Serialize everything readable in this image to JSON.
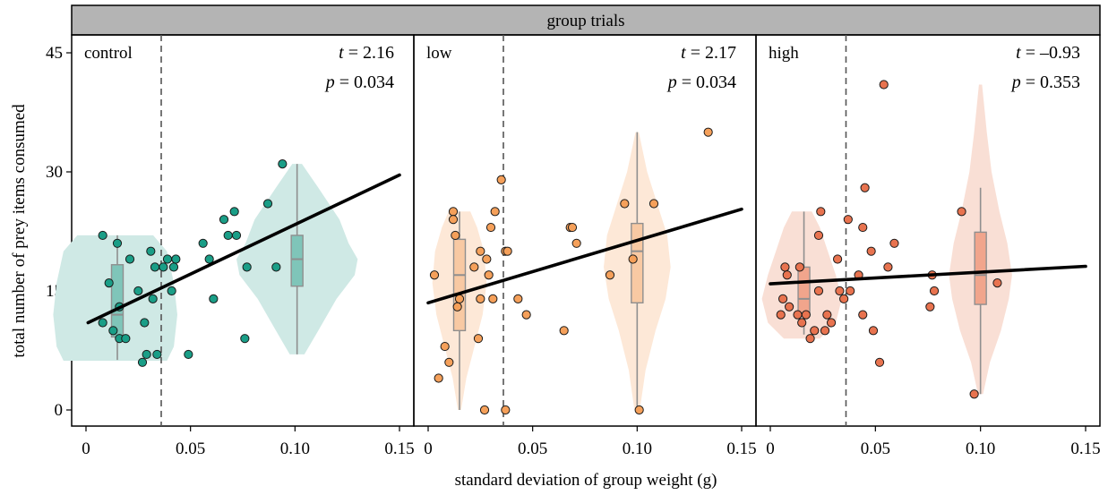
{
  "figure": {
    "strip_title": "group trials",
    "xlabel": "standard deviation of group weight (g)",
    "ylabel": "total number of prey items consumed"
  },
  "chart_data": {
    "type": "scatter",
    "xlim": [
      0,
      0.15
    ],
    "ylim": [
      0,
      45
    ],
    "x_ticks": [
      0,
      0.05,
      0.1,
      0.15
    ],
    "x_tick_labels": [
      "0",
      "0.05",
      "0.10",
      "0.15"
    ],
    "y_ticks": [
      0,
      15,
      30,
      45
    ],
    "y_tick_labels": [
      "0",
      "15",
      "30",
      "45"
    ],
    "threshold_x": 0.036,
    "grid": false,
    "panels": [
      {
        "name": "control",
        "t_label": "t",
        "t_value": "= 2.16",
        "p_label": "p",
        "p_value": "= 0.034",
        "point_color": "#1a9e87",
        "fill_color": "#cfe9e5",
        "box_color": "#7fc5b9",
        "regression": {
          "x": [
            0.001,
            0.15
          ],
          "y": [
            11.0,
            29.6
          ]
        },
        "violins": [
          {
            "center": 0.014,
            "max_halfwidth": 0.033,
            "profile": [
              [
                6.2,
                0.75
              ],
              [
                8,
                0.85
              ],
              [
                12,
                0.9
              ],
              [
                16,
                0.85
              ],
              [
                20,
                0.75
              ],
              [
                22,
                0.55
              ]
            ]
          },
          {
            "center": 0.101,
            "max_halfwidth": 0.029,
            "profile": [
              [
                7,
                0.12
              ],
              [
                10,
                0.35
              ],
              [
                14,
                0.65
              ],
              [
                17,
                0.95
              ],
              [
                19,
                1.0
              ],
              [
                21,
                0.85
              ],
              [
                24,
                0.7
              ],
              [
                28,
                0.35
              ],
              [
                31,
                0.08
              ]
            ]
          }
        ],
        "boxes": [
          {
            "center": 0.015,
            "q1": 9.2,
            "median": 12.0,
            "q3": 18.3,
            "min": 6.3,
            "max": 22
          },
          {
            "center": 0.101,
            "q1": 15.6,
            "median": 19.0,
            "q3": 22.0,
            "min": 7.0,
            "max": 31
          }
        ],
        "points": [
          {
            "x": 0.008,
            "y": 22
          },
          {
            "x": 0.008,
            "y": 11
          },
          {
            "x": 0.011,
            "y": 16
          },
          {
            "x": 0.013,
            "y": 10
          },
          {
            "x": 0.015,
            "y": 21
          },
          {
            "x": 0.016,
            "y": 9
          },
          {
            "x": 0.016,
            "y": 13
          },
          {
            "x": 0.019,
            "y": 9
          },
          {
            "x": 0.021,
            "y": 19
          },
          {
            "x": 0.025,
            "y": 15
          },
          {
            "x": 0.027,
            "y": 6
          },
          {
            "x": 0.028,
            "y": 11
          },
          {
            "x": 0.029,
            "y": 7
          },
          {
            "x": 0.031,
            "y": 20
          },
          {
            "x": 0.032,
            "y": 14
          },
          {
            "x": 0.033,
            "y": 18
          },
          {
            "x": 0.034,
            "y": 7
          },
          {
            "x": 0.037,
            "y": 18
          },
          {
            "x": 0.039,
            "y": 19
          },
          {
            "x": 0.041,
            "y": 15
          },
          {
            "x": 0.042,
            "y": 18
          },
          {
            "x": 0.043,
            "y": 19
          },
          {
            "x": 0.049,
            "y": 7
          },
          {
            "x": 0.056,
            "y": 21
          },
          {
            "x": 0.059,
            "y": 19
          },
          {
            "x": 0.061,
            "y": 14
          },
          {
            "x": 0.066,
            "y": 24
          },
          {
            "x": 0.068,
            "y": 22
          },
          {
            "x": 0.071,
            "y": 25
          },
          {
            "x": 0.072,
            "y": 22
          },
          {
            "x": 0.076,
            "y": 9
          },
          {
            "x": 0.077,
            "y": 18
          },
          {
            "x": 0.087,
            "y": 26
          },
          {
            "x": 0.091,
            "y": 18
          },
          {
            "x": 0.094,
            "y": 31
          }
        ]
      },
      {
        "name": "low",
        "t_label": "t",
        "t_value": "= 2.17",
        "p_label": "p",
        "p_value": "= 0.034",
        "point_color": "#f5a05a",
        "fill_color": "#fde8d7",
        "box_color": "#f8c9a3",
        "regression": {
          "x": [
            0.0,
            0.15
          ],
          "y": [
            13.5,
            25.3
          ]
        },
        "violins": [
          {
            "center": 0.015,
            "max_halfwidth": 0.013,
            "profile": [
              [
                0,
                0.06
              ],
              [
                4,
                0.25
              ],
              [
                8,
                0.55
              ],
              [
                12,
                0.85
              ],
              [
                16,
                1.0
              ],
              [
                20,
                0.9
              ],
              [
                23,
                0.65
              ],
              [
                25,
                0.4
              ]
            ]
          },
          {
            "center": 0.1,
            "max_halfwidth": 0.016,
            "profile": [
              [
                0,
                0.08
              ],
              [
                5,
                0.25
              ],
              [
                10,
                0.55
              ],
              [
                14,
                0.85
              ],
              [
                18,
                1.0
              ],
              [
                22,
                0.9
              ],
              [
                26,
                0.6
              ],
              [
                30,
                0.3
              ],
              [
                35,
                0.05
              ]
            ]
          }
        ],
        "boxes": [
          {
            "center": 0.015,
            "q1": 10.0,
            "median": 17.0,
            "q3": 21.5,
            "min": 0.0,
            "max": 25
          },
          {
            "center": 0.1,
            "q1": 13.5,
            "median": 20.0,
            "q3": 23.5,
            "min": 0.0,
            "max": 35
          }
        ],
        "points": [
          {
            "x": 0.003,
            "y": 17
          },
          {
            "x": 0.005,
            "y": 4
          },
          {
            "x": 0.008,
            "y": 8
          },
          {
            "x": 0.01,
            "y": 6
          },
          {
            "x": 0.012,
            "y": 25
          },
          {
            "x": 0.012,
            "y": 24
          },
          {
            "x": 0.013,
            "y": 22
          },
          {
            "x": 0.014,
            "y": 13
          },
          {
            "x": 0.015,
            "y": 14
          },
          {
            "x": 0.022,
            "y": 18
          },
          {
            "x": 0.024,
            "y": 9
          },
          {
            "x": 0.025,
            "y": 14
          },
          {
            "x": 0.025,
            "y": 20
          },
          {
            "x": 0.027,
            "y": 0
          },
          {
            "x": 0.028,
            "y": 19
          },
          {
            "x": 0.029,
            "y": 17
          },
          {
            "x": 0.03,
            "y": 23
          },
          {
            "x": 0.031,
            "y": 14
          },
          {
            "x": 0.032,
            "y": 25
          },
          {
            "x": 0.035,
            "y": 29
          },
          {
            "x": 0.037,
            "y": 20
          },
          {
            "x": 0.037,
            "y": 0
          },
          {
            "x": 0.038,
            "y": 20
          },
          {
            "x": 0.043,
            "y": 14
          },
          {
            "x": 0.047,
            "y": 12
          },
          {
            "x": 0.065,
            "y": 10
          },
          {
            "x": 0.068,
            "y": 23
          },
          {
            "x": 0.069,
            "y": 23
          },
          {
            "x": 0.071,
            "y": 21
          },
          {
            "x": 0.087,
            "y": 17
          },
          {
            "x": 0.094,
            "y": 26
          },
          {
            "x": 0.098,
            "y": 19
          },
          {
            "x": 0.101,
            "y": 0
          },
          {
            "x": 0.108,
            "y": 26
          },
          {
            "x": 0.134,
            "y": 35
          }
        ]
      },
      {
        "name": "high",
        "t_label": "t",
        "t_value": "= –0.93",
        "p_label": "p",
        "p_value": "= 0.353",
        "point_color": "#e8734f",
        "fill_color": "#f9dfd5",
        "box_color": "#f1a58c",
        "regression": {
          "x": [
            0.0,
            0.15
          ],
          "y": [
            15.9,
            18.1
          ]
        },
        "violins": [
          {
            "center": 0.015,
            "max_halfwidth": 0.019,
            "profile": [
              [
                9.0,
                0.45
              ],
              [
                11,
                0.85
              ],
              [
                14,
                1.0
              ],
              [
                17,
                0.85
              ],
              [
                20,
                0.65
              ],
              [
                23,
                0.45
              ],
              [
                25,
                0.25
              ]
            ]
          },
          {
            "center": 0.1,
            "max_halfwidth": 0.015,
            "profile": [
              [
                2,
                0.08
              ],
              [
                6,
                0.3
              ],
              [
                10,
                0.65
              ],
              [
                14,
                0.9
              ],
              [
                17,
                1.0
              ],
              [
                21,
                0.85
              ],
              [
                25,
                0.6
              ],
              [
                30,
                0.35
              ],
              [
                35,
                0.2
              ],
              [
                41,
                0.05
              ]
            ]
          }
        ],
        "boxes": [
          {
            "center": 0.016,
            "q1": 12.2,
            "median": 14.0,
            "q3": 18.0,
            "min": 9.5,
            "max": 25
          },
          {
            "center": 0.1,
            "q1": 13.3,
            "median": 17.0,
            "q3": 22.4,
            "min": 2.0,
            "max": 28
          }
        ],
        "points": [
          {
            "x": 0.005,
            "y": 12
          },
          {
            "x": 0.006,
            "y": 14
          },
          {
            "x": 0.007,
            "y": 18
          },
          {
            "x": 0.008,
            "y": 17
          },
          {
            "x": 0.009,
            "y": 13
          },
          {
            "x": 0.013,
            "y": 12
          },
          {
            "x": 0.014,
            "y": 18
          },
          {
            "x": 0.015,
            "y": 11
          },
          {
            "x": 0.017,
            "y": 12
          },
          {
            "x": 0.019,
            "y": 9
          },
          {
            "x": 0.021,
            "y": 10
          },
          {
            "x": 0.023,
            "y": 22
          },
          {
            "x": 0.023,
            "y": 15
          },
          {
            "x": 0.024,
            "y": 25
          },
          {
            "x": 0.026,
            "y": 10
          },
          {
            "x": 0.027,
            "y": 12
          },
          {
            "x": 0.029,
            "y": 11
          },
          {
            "x": 0.032,
            "y": 19
          },
          {
            "x": 0.033,
            "y": 15
          },
          {
            "x": 0.035,
            "y": 14
          },
          {
            "x": 0.037,
            "y": 24
          },
          {
            "x": 0.038,
            "y": 15
          },
          {
            "x": 0.042,
            "y": 17
          },
          {
            "x": 0.044,
            "y": 12
          },
          {
            "x": 0.044,
            "y": 23
          },
          {
            "x": 0.045,
            "y": 28
          },
          {
            "x": 0.048,
            "y": 20
          },
          {
            "x": 0.049,
            "y": 10
          },
          {
            "x": 0.052,
            "y": 6
          },
          {
            "x": 0.054,
            "y": 41
          },
          {
            "x": 0.056,
            "y": 18
          },
          {
            "x": 0.059,
            "y": 21
          },
          {
            "x": 0.076,
            "y": 13
          },
          {
            "x": 0.077,
            "y": 17
          },
          {
            "x": 0.078,
            "y": 15
          },
          {
            "x": 0.091,
            "y": 25
          },
          {
            "x": 0.097,
            "y": 2
          },
          {
            "x": 0.108,
            "y": 16
          }
        ]
      }
    ]
  }
}
